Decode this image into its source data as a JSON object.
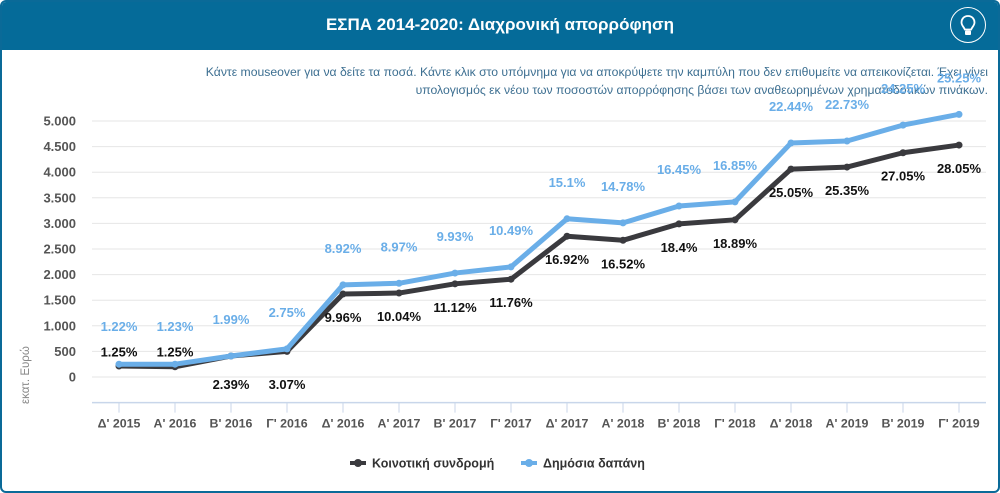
{
  "header": {
    "title": "ΕΣΠΑ 2014-2020: Διαχρονική απορρόφηση",
    "info_icon": "lightbulb-icon"
  },
  "note": {
    "line1": "Κάντε mouseover για να δείτε τα ποσά. Κάντε κλικ στο υπόμνημα για να αποκρύψετε την καμπύλη που δεν επιθυμείτε να απεικονίζεται. Έχει γίνει",
    "line2": "υπολογισμός εκ νέου των ποσοστών απορρόφησης βάσει των αναθεωρημένων χρηματοδοτικών πινάκων."
  },
  "colors": {
    "header": "#056b99",
    "dark_series": "#3a3a3e",
    "blue_series": "#6aaee8",
    "note_text": "#3d6f91"
  },
  "chart_data": {
    "type": "line",
    "title": "ΕΣΠΑ 2014-2020: Διαχρονική απορρόφηση",
    "xlabel": "",
    "ylabel": "εκατ. Ευρώ",
    "ylim": [
      -500,
      5000
    ],
    "yticks": [
      0,
      500,
      1000,
      1500,
      2000,
      2500,
      3000,
      3500,
      4000,
      4500,
      5000
    ],
    "ytick_labels": [
      "0",
      "500",
      "1.000",
      "1.500",
      "2.000",
      "2.500",
      "3.000",
      "3.500",
      "4.000",
      "4.500",
      "5.000"
    ],
    "grid": true,
    "legend_position": "bottom-center",
    "categories": [
      "Δ' 2015",
      "Α' 2016",
      "Β' 2016",
      "Γ' 2016",
      "Δ' 2016",
      "Α' 2017",
      "Β' 2017",
      "Γ' 2017",
      "Δ' 2017",
      "Α' 2018",
      "Β' 2018",
      "Γ' 2018",
      "Δ' 2018",
      "Α' 2019",
      "Β' 2019",
      "Γ' 2019"
    ],
    "series": [
      {
        "name": "Κοινοτική συνδρομή",
        "color": "#3a3a3e",
        "values": [
          215,
          200,
          410,
          500,
          1620,
          1640,
          1820,
          1910,
          2750,
          2670,
          2990,
          3070,
          4060,
          4100,
          4380,
          4530
        ],
        "labels": [
          "1.25%",
          "1.25%",
          "2.39%",
          "3.07%",
          "9.96%",
          "10.04%",
          "11.12%",
          "11.76%",
          "16.92%",
          "16.52%",
          "18.4%",
          "18.89%",
          "25.05%",
          "25.35%",
          "27.05%",
          "28.05%"
        ]
      },
      {
        "name": "Δημόσια δαπάνη",
        "color": "#6aaee8",
        "values": [
          250,
          250,
          410,
          550,
          1800,
          1830,
          2030,
          2150,
          3090,
          3010,
          3340,
          3420,
          4570,
          4610,
          4920,
          5130
        ],
        "labels": [
          "1.22%",
          "1.23%",
          "1.99%",
          "2.75%",
          "8.92%",
          "8.97%",
          "9.93%",
          "10.49%",
          "15.1%",
          "14.78%",
          "16.45%",
          "16.85%",
          "22.44%",
          "22.73%",
          "24.25%",
          "25.25%"
        ]
      }
    ]
  }
}
